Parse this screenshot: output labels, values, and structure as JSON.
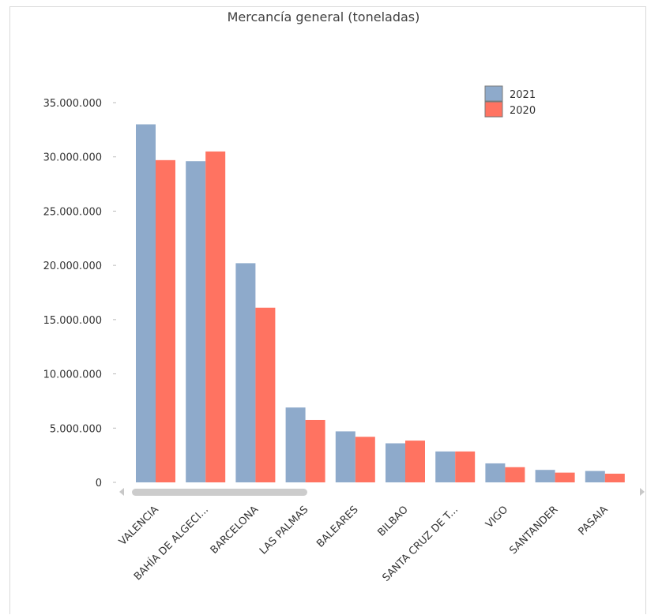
{
  "chart_data": {
    "type": "bar",
    "title": "Mercancía general (toneladas)",
    "categories": [
      "VALENCIA",
      "BAHÍA DE ALGECI...",
      "BARCELONA",
      "LAS PALMAS",
      "BALEARES",
      "BILBAO",
      "SANTA CRUZ DE T...",
      "VIGO",
      "SANTANDER",
      "PASAIA"
    ],
    "series": [
      {
        "name": "2021",
        "color": "#8eaacb",
        "values": [
          33000000,
          29600000,
          20200000,
          6900000,
          4700000,
          3600000,
          2850000,
          1750000,
          1150000,
          1050000
        ]
      },
      {
        "name": "2020",
        "color": "#ff7361",
        "values": [
          29700000,
          30500000,
          16100000,
          5750000,
          4200000,
          3850000,
          2850000,
          1400000,
          900000,
          800000
        ]
      }
    ],
    "yticks": [
      "35.000.000",
      "30.000.000",
      "25.000.000",
      "20.000.000",
      "15.000.000",
      "10.000.000",
      "5.000.000",
      "0"
    ],
    "ylim": [
      0,
      35000000
    ],
    "legend_position": "top-right",
    "grid": false
  }
}
